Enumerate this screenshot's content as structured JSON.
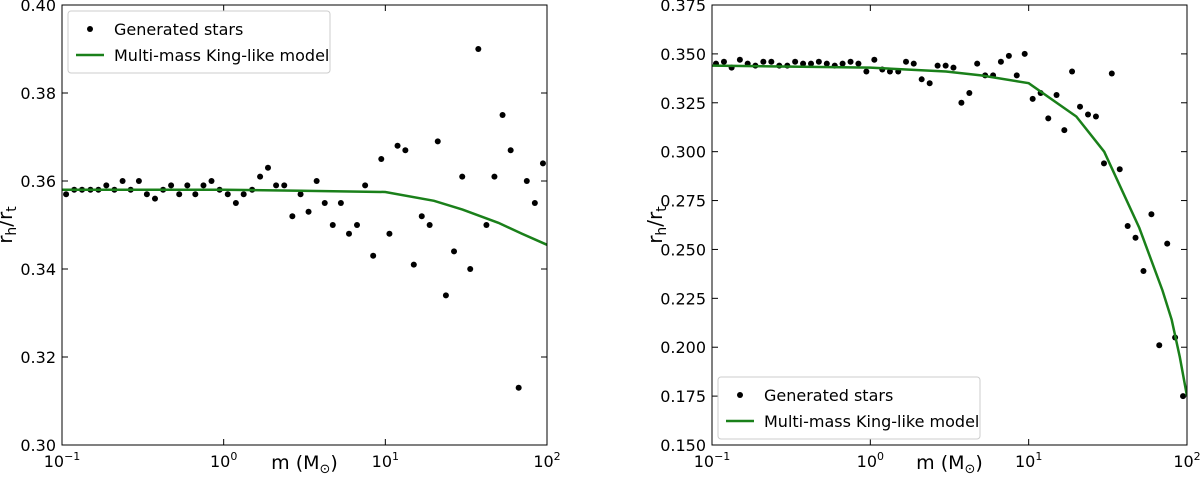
{
  "chart_data": [
    {
      "type": "scatter",
      "y_label": [
        "r",
        "h",
        "/r",
        "t"
      ],
      "x_label": [
        "m (M",
        "⊙",
        ")"
      ],
      "log_x": true,
      "xlim": [
        0.1,
        100
      ],
      "xticks": [
        {
          "value": 0.1,
          "label": "10",
          "exponent": "−1"
        },
        {
          "value": 1,
          "label": "10",
          "exponent": "0"
        },
        {
          "value": 10,
          "label": "10",
          "exponent": "1"
        },
        {
          "value": 100,
          "label": "10",
          "exponent": "2"
        }
      ],
      "ylim": [
        0.3,
        0.4
      ],
      "yticks": [
        {
          "value": 0.3,
          "label": "0.30"
        },
        {
          "value": 0.32,
          "label": "0.32"
        },
        {
          "value": 0.34,
          "label": "0.34"
        },
        {
          "value": 0.36,
          "label": "0.36"
        },
        {
          "value": 0.38,
          "label": "0.38"
        },
        {
          "value": 0.4,
          "label": "0.40"
        }
      ],
      "legend": "upper left",
      "series": [
        {
          "name": "Generated stars",
          "type": "scatter",
          "color": "#000000",
          "x": [
            0.106,
            0.119,
            0.133,
            0.15,
            0.168,
            0.188,
            0.211,
            0.237,
            0.266,
            0.299,
            0.335,
            0.376,
            0.422,
            0.473,
            0.531,
            0.596,
            0.668,
            0.75,
            0.841,
            0.944,
            1.06,
            1.19,
            1.33,
            1.5,
            1.68,
            1.88,
            2.11,
            2.37,
            2.66,
            2.99,
            3.35,
            3.76,
            4.22,
            4.73,
            5.31,
            5.96,
            6.68,
            7.5,
            8.41,
            9.44,
            10.6,
            11.9,
            13.3,
            15.0,
            16.8,
            18.8,
            21.1,
            23.7,
            26.6,
            29.9,
            33.5,
            37.6,
            42.2,
            47.3,
            53.1,
            59.6,
            66.8,
            75.0,
            84.1,
            94.4
          ],
          "values": [
            0.357,
            0.358,
            0.358,
            0.358,
            0.358,
            0.359,
            0.358,
            0.36,
            0.358,
            0.36,
            0.357,
            0.356,
            0.358,
            0.359,
            0.357,
            0.359,
            0.357,
            0.359,
            0.36,
            0.358,
            0.357,
            0.355,
            0.357,
            0.358,
            0.361,
            0.363,
            0.359,
            0.359,
            0.352,
            0.357,
            0.353,
            0.36,
            0.355,
            0.35,
            0.355,
            0.348,
            0.35,
            0.359,
            0.343,
            0.365,
            0.348,
            0.368,
            0.367,
            0.341,
            0.352,
            0.35,
            0.369,
            0.334,
            0.344,
            0.361,
            0.34,
            0.39,
            0.35,
            0.361,
            0.375,
            0.367,
            0.313,
            0.36,
            0.355,
            0.364
          ]
        },
        {
          "name": "Multi-mass King-like model",
          "type": "line",
          "color": "#1a801a",
          "x": [
            0.1,
            0.3,
            1,
            3,
            10,
            20,
            30,
            50,
            70,
            100
          ],
          "values": [
            0.358,
            0.358,
            0.358,
            0.3578,
            0.3575,
            0.3555,
            0.3535,
            0.3505,
            0.348,
            0.3455
          ]
        }
      ]
    },
    {
      "type": "scatter",
      "y_label": [
        "r",
        "h",
        "/r",
        "t"
      ],
      "x_label": [
        "m (M",
        "⊙",
        ")"
      ],
      "log_x": true,
      "xlim": [
        0.1,
        100
      ],
      "xticks": [
        {
          "value": 0.1,
          "label": "10",
          "exponent": "−1"
        },
        {
          "value": 1,
          "label": "10",
          "exponent": "0"
        },
        {
          "value": 10,
          "label": "10",
          "exponent": "1"
        },
        {
          "value": 100,
          "label": "10",
          "exponent": "2"
        }
      ],
      "ylim": [
        0.15,
        0.375
      ],
      "yticks": [
        {
          "value": 0.15,
          "label": "0.150"
        },
        {
          "value": 0.175,
          "label": "0.175"
        },
        {
          "value": 0.2,
          "label": "0.200"
        },
        {
          "value": 0.225,
          "label": "0.225"
        },
        {
          "value": 0.25,
          "label": "0.250"
        },
        {
          "value": 0.275,
          "label": "0.275"
        },
        {
          "value": 0.3,
          "label": "0.300"
        },
        {
          "value": 0.325,
          "label": "0.325"
        },
        {
          "value": 0.35,
          "label": "0.350"
        },
        {
          "value": 0.375,
          "label": "0.375"
        }
      ],
      "legend": "lower left",
      "series": [
        {
          "name": "Generated stars",
          "type": "scatter",
          "color": "#000000",
          "x": [
            0.106,
            0.119,
            0.133,
            0.15,
            0.168,
            0.188,
            0.211,
            0.237,
            0.266,
            0.299,
            0.335,
            0.376,
            0.422,
            0.473,
            0.531,
            0.596,
            0.668,
            0.75,
            0.841,
            0.944,
            1.06,
            1.19,
            1.33,
            1.5,
            1.68,
            1.88,
            2.11,
            2.37,
            2.66,
            2.99,
            3.35,
            3.76,
            4.22,
            4.73,
            5.31,
            5.96,
            6.68,
            7.5,
            8.41,
            9.44,
            10.6,
            11.9,
            13.3,
            15.0,
            16.8,
            18.8,
            21.1,
            23.7,
            26.6,
            29.9,
            33.5,
            37.6,
            42.2,
            47.3,
            53.1,
            59.6,
            66.8,
            75.0,
            84.1,
            94.4
          ],
          "values": [
            0.345,
            0.346,
            0.343,
            0.347,
            0.345,
            0.344,
            0.346,
            0.346,
            0.344,
            0.344,
            0.346,
            0.345,
            0.345,
            0.346,
            0.345,
            0.344,
            0.345,
            0.346,
            0.345,
            0.341,
            0.347,
            0.342,
            0.341,
            0.341,
            0.346,
            0.345,
            0.337,
            0.335,
            0.344,
            0.344,
            0.343,
            0.325,
            0.33,
            0.345,
            0.339,
            0.339,
            0.346,
            0.349,
            0.339,
            0.35,
            0.327,
            0.33,
            0.317,
            0.329,
            0.311,
            0.341,
            0.323,
            0.319,
            0.318,
            0.294,
            0.34,
            0.291,
            0.262,
            0.256,
            0.239,
            0.268,
            0.201,
            0.253,
            0.205,
            0.175
          ]
        },
        {
          "name": "Multi-mass King-like model",
          "type": "line",
          "color": "#1a801a",
          "x": [
            0.1,
            1,
            3,
            5,
            10,
            20,
            30,
            50,
            70,
            80,
            90,
            100
          ],
          "values": [
            0.344,
            0.343,
            0.341,
            0.339,
            0.335,
            0.318,
            0.3,
            0.261,
            0.229,
            0.214,
            0.195,
            0.175
          ]
        }
      ]
    }
  ]
}
